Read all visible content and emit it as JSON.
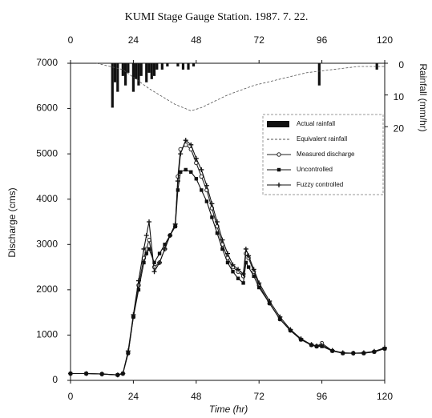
{
  "chart_data": {
    "type": "line",
    "title": "KUMI  Stage Gauge Station. 1987. 7. 22.",
    "x_label": "Time (hr)",
    "y_label": "Discharge (cms)",
    "y2_label": "Rainfall (mm/hr)",
    "xlim": [
      0,
      120
    ],
    "xticks": [
      0,
      24,
      48,
      72,
      96,
      120
    ],
    "ylim": [
      0,
      7000
    ],
    "yticks": [
      0,
      1000,
      2000,
      3000,
      4000,
      5000,
      6000,
      7000
    ],
    "y2lim": [
      100,
      0
    ],
    "y2ticks": [
      0,
      10,
      20
    ],
    "x": [
      0,
      6,
      12,
      18,
      20,
      22,
      24,
      26,
      28,
      29,
      30,
      32,
      34,
      36,
      38,
      40,
      41,
      42,
      44,
      46,
      48,
      50,
      52,
      54,
      56,
      58,
      60,
      62,
      64,
      66,
      67,
      68,
      70,
      72,
      76,
      80,
      84,
      88,
      92,
      94,
      96,
      100,
      104,
      108,
      112,
      116,
      120
    ],
    "series": [
      {
        "name": "Actual rainfall",
        "type": "bar",
        "axis": "y2",
        "color": "#111",
        "x": [
          16,
          17,
          18,
          20,
          21,
          22,
          24,
          25,
          26,
          27,
          29,
          30,
          31,
          32,
          33,
          35,
          37,
          41,
          43,
          45,
          47,
          95,
          117
        ],
        "values": [
          14,
          6,
          9,
          4,
          7,
          3,
          9,
          5,
          7,
          4,
          6,
          3,
          5,
          4,
          2,
          2,
          1,
          1,
          2,
          2,
          1,
          7,
          2
        ]
      },
      {
        "name": "Equivalent rainfall",
        "type": "line",
        "axis": "y2",
        "color": "#555",
        "dash": true,
        "x": [
          10,
          20,
          30,
          40,
          46,
          50,
          60,
          70,
          80,
          90,
          100,
          110,
          120
        ],
        "values": [
          0,
          2,
          8,
          13,
          15,
          14,
          10,
          7,
          5,
          3,
          2,
          1,
          1
        ]
      },
      {
        "name": "Measured discharge",
        "type": "line",
        "color": "#222",
        "marker": "circle",
        "values": [
          150,
          150,
          140,
          120,
          150,
          600,
          1400,
          2100,
          2700,
          2900,
          3100,
          2500,
          2600,
          2900,
          3200,
          3400,
          4500,
          5100,
          5200,
          5100,
          4800,
          4500,
          4200,
          3800,
          3400,
          3000,
          2700,
          2500,
          2400,
          2300,
          2800,
          2700,
          2400,
          2100,
          1700,
          1350,
          1100,
          900,
          780,
          750,
          820,
          650,
          600,
          600,
          600,
          630,
          700
        ]
      },
      {
        "name": "Uncontrolled",
        "type": "line",
        "color": "#111",
        "marker": "square",
        "values": [
          150,
          150,
          140,
          120,
          150,
          600,
          1400,
          2000,
          2600,
          2800,
          2900,
          2600,
          2800,
          3000,
          3200,
          3400,
          4200,
          4600,
          4650,
          4600,
          4450,
          4200,
          3950,
          3600,
          3250,
          2900,
          2600,
          2400,
          2250,
          2150,
          2600,
          2500,
          2300,
          2050,
          1700,
          1350,
          1100,
          900,
          780,
          750,
          750,
          650,
          600,
          600,
          600,
          630,
          700
        ]
      },
      {
        "name": "Fuzzy controlled",
        "type": "line",
        "color": "#111",
        "marker": "plus",
        "values": [
          150,
          150,
          140,
          120,
          150,
          650,
          1450,
          2200,
          2900,
          3200,
          3500,
          2400,
          2600,
          2900,
          3200,
          3450,
          4400,
          5000,
          5300,
          5200,
          4900,
          4650,
          4300,
          3900,
          3500,
          3100,
          2800,
          2550,
          2450,
          2350,
          2900,
          2750,
          2450,
          2150,
          1750,
          1400,
          1120,
          920,
          790,
          760,
          780,
          660,
          610,
          600,
          610,
          640,
          720
        ]
      }
    ]
  }
}
